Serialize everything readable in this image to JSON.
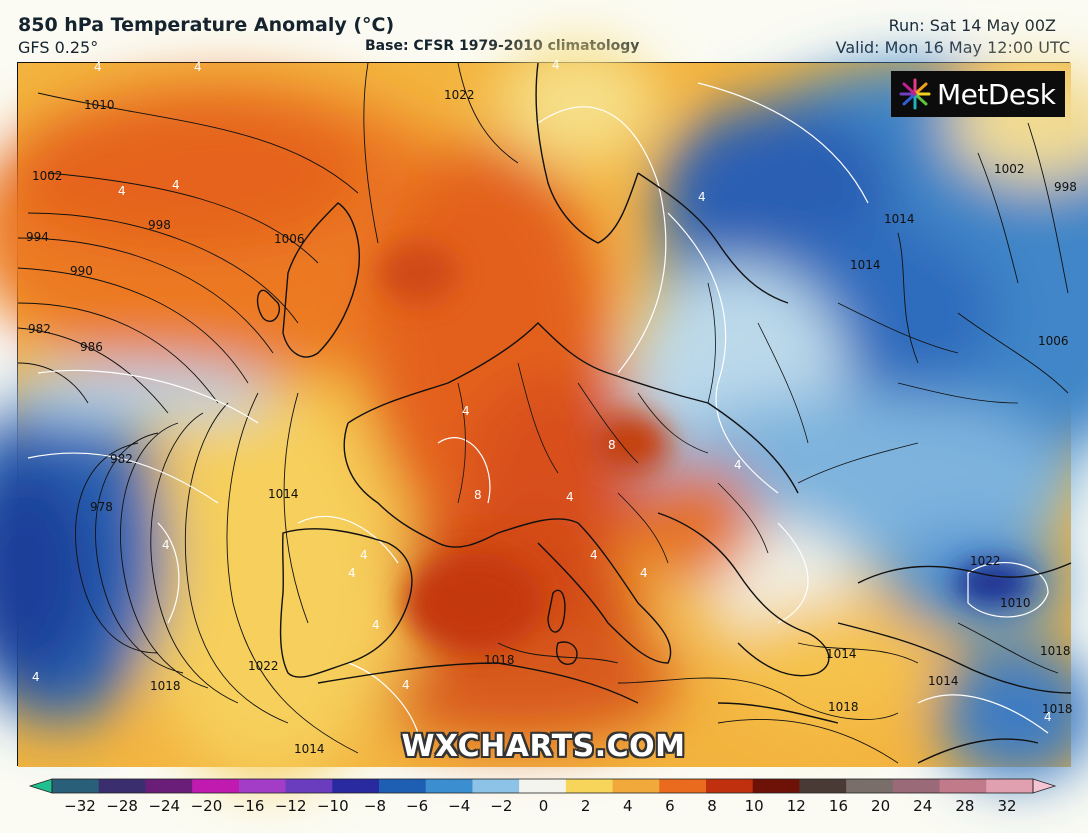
{
  "header": {
    "title": "850 hPa Temperature Anomaly (°C)",
    "model": "GFS 0.25°",
    "base": "Base: CFSR 1979-2010 climatology",
    "run": "Run: Sat 14 May 00Z",
    "valid": "Valid: Mon 16 May 12:00 UTC"
  },
  "logo": {
    "text": "MetDesk",
    "icon": "metdesk-burst-icon"
  },
  "watermark": "WXCHARTS.COM",
  "colorbar": {
    "ticks": [
      "−32",
      "−28",
      "−24",
      "−20",
      "−16",
      "−12",
      "−10",
      "−8",
      "−6",
      "−4",
      "−2",
      "0",
      "2",
      "4",
      "6",
      "8",
      "10",
      "12",
      "16",
      "20",
      "24",
      "28",
      "32"
    ],
    "colors": [
      "#1fbf8f",
      "#2a5f7a",
      "#3a2e6e",
      "#6a1e7a",
      "#c01ab0",
      "#a33dc8",
      "#6a3dbf",
      "#2a2aa0",
      "#1e5fb4",
      "#3b8fd0",
      "#8cc3e6",
      "#f4f4ee",
      "#f7d45a",
      "#f2a93b",
      "#ea6a1e",
      "#c0300f",
      "#6e1208",
      "#4a3a36",
      "#7a6e6a",
      "#9a6a78",
      "#c07a8a",
      "#e0a0b0",
      "#f4c4d4"
    ]
  },
  "map": {
    "isobar_labels": [
      "1010",
      "1002",
      "998",
      "994",
      "990",
      "982",
      "986",
      "978",
      "982",
      "1006",
      "1014",
      "1022",
      "1018",
      "1014",
      "1018",
      "1022",
      "1014",
      "1018",
      "1014",
      "1002",
      "998",
      "1014",
      "1006",
      "1022",
      "1010",
      "1018",
      "1014",
      "1018"
    ],
    "anomaly_labels": [
      "4",
      "4",
      "4",
      "4",
      "4",
      "4",
      "8",
      "8",
      "4",
      "4",
      "4",
      "4",
      "4",
      "4",
      "4",
      "4",
      "4",
      "4",
      "4",
      "4"
    ]
  }
}
